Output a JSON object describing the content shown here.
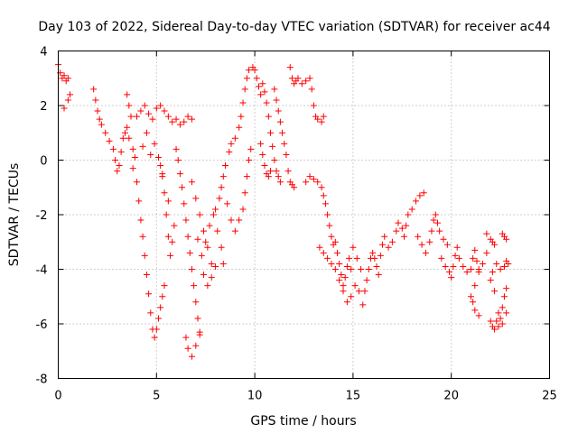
{
  "chart_data": {
    "type": "scatter",
    "title": "Day 103 of 2022, Sidereal Day-to-day VTEC variation (SDTVAR) for receiver ac44",
    "xlabel": "GPS time / hours",
    "ylabel": "SDTVAR / TECUs",
    "xlim": [
      0,
      25
    ],
    "ylim": [
      -8,
      4
    ],
    "xticks": [
      0,
      5,
      10,
      15,
      20,
      25
    ],
    "yticks": [
      -8,
      -6,
      -4,
      -2,
      0,
      2,
      4
    ],
    "xtick_labels": [
      "0",
      "5",
      "10",
      "15",
      "20",
      "25"
    ],
    "ytick_labels": [
      "-8",
      "-6",
      "-4",
      "-2",
      "0",
      "2",
      "4"
    ],
    "grid": true,
    "marker": "+",
    "color": "#ff0000",
    "series": [
      {
        "name": "SDTVAR",
        "points": [
          [
            0.0,
            3.5
          ],
          [
            0.1,
            3.2
          ],
          [
            0.2,
            3.0
          ],
          [
            0.3,
            3.1
          ],
          [
            0.4,
            2.9
          ],
          [
            0.5,
            3.0
          ],
          [
            0.3,
            1.9
          ],
          [
            0.5,
            2.2
          ],
          [
            0.6,
            2.4
          ],
          [
            1.8,
            2.6
          ],
          [
            1.9,
            2.2
          ],
          [
            2.0,
            1.8
          ],
          [
            2.1,
            1.5
          ],
          [
            2.2,
            1.3
          ],
          [
            2.4,
            1.0
          ],
          [
            2.6,
            0.7
          ],
          [
            2.8,
            0.4
          ],
          [
            2.9,
            0.0
          ],
          [
            3.0,
            -0.4
          ],
          [
            3.1,
            -0.2
          ],
          [
            3.2,
            0.3
          ],
          [
            3.3,
            0.8
          ],
          [
            3.4,
            1.0
          ],
          [
            3.5,
            2.4
          ],
          [
            3.6,
            2.0
          ],
          [
            3.7,
            1.6
          ],
          [
            3.5,
            1.2
          ],
          [
            3.6,
            0.8
          ],
          [
            3.8,
            0.4
          ],
          [
            3.9,
            0.1
          ],
          [
            3.8,
            -0.3
          ],
          [
            4.0,
            -0.8
          ],
          [
            4.1,
            -1.5
          ],
          [
            4.2,
            -2.2
          ],
          [
            4.3,
            -2.8
          ],
          [
            4.4,
            -3.5
          ],
          [
            4.5,
            -4.2
          ],
          [
            4.6,
            -4.9
          ],
          [
            4.7,
            -5.6
          ],
          [
            4.8,
            -6.2
          ],
          [
            4.9,
            -6.5
          ],
          [
            5.0,
            -6.2
          ],
          [
            5.1,
            -5.8
          ],
          [
            5.2,
            -5.4
          ],
          [
            5.3,
            -5.0
          ],
          [
            5.4,
            -4.6
          ],
          [
            4.0,
            1.6
          ],
          [
            4.2,
            1.8
          ],
          [
            4.4,
            2.0
          ],
          [
            4.6,
            1.7
          ],
          [
            4.8,
            1.5
          ],
          [
            5.0,
            1.9
          ],
          [
            5.2,
            2.0
          ],
          [
            5.4,
            1.8
          ],
          [
            5.6,
            1.6
          ],
          [
            5.8,
            1.4
          ],
          [
            6.0,
            1.5
          ],
          [
            6.2,
            1.3
          ],
          [
            6.4,
            1.4
          ],
          [
            6.6,
            1.6
          ],
          [
            6.8,
            1.5
          ],
          [
            4.3,
            0.5
          ],
          [
            4.5,
            1.0
          ],
          [
            4.7,
            0.2
          ],
          [
            4.9,
            0.6
          ],
          [
            5.1,
            0.1
          ],
          [
            5.3,
            -0.5
          ],
          [
            5.4,
            -1.2
          ],
          [
            5.5,
            -2.0
          ],
          [
            5.6,
            -2.8
          ],
          [
            5.7,
            -3.5
          ],
          [
            5.8,
            -3.0
          ],
          [
            5.9,
            -2.4
          ],
          [
            5.6,
            -1.5
          ],
          [
            5.3,
            -0.6
          ],
          [
            5.2,
            -0.2
          ],
          [
            6.0,
            0.4
          ],
          [
            6.1,
            0.0
          ],
          [
            6.2,
            -0.5
          ],
          [
            6.3,
            -1.0
          ],
          [
            6.4,
            -1.6
          ],
          [
            6.5,
            -2.2
          ],
          [
            6.6,
            -2.8
          ],
          [
            6.7,
            -3.4
          ],
          [
            6.8,
            -4.0
          ],
          [
            6.9,
            -4.6
          ],
          [
            7.0,
            -5.2
          ],
          [
            7.1,
            -5.8
          ],
          [
            7.2,
            -6.3
          ],
          [
            6.5,
            -6.5
          ],
          [
            6.6,
            -6.9
          ],
          [
            6.8,
            -7.2
          ],
          [
            7.0,
            -6.8
          ],
          [
            7.2,
            -6.4
          ],
          [
            6.8,
            -0.8
          ],
          [
            7.0,
            -1.4
          ],
          [
            7.2,
            -2.0
          ],
          [
            7.4,
            -2.6
          ],
          [
            7.6,
            -3.2
          ],
          [
            7.8,
            -3.8
          ],
          [
            7.4,
            -4.2
          ],
          [
            7.6,
            -4.6
          ],
          [
            7.8,
            -4.3
          ],
          [
            8.0,
            -3.9
          ],
          [
            7.5,
            -3.0
          ],
          [
            7.3,
            -3.5
          ],
          [
            7.1,
            -2.9
          ],
          [
            7.7,
            -2.4
          ],
          [
            7.9,
            -2.0
          ],
          [
            8.1,
            -2.6
          ],
          [
            8.3,
            -3.2
          ],
          [
            8.4,
            -3.8
          ],
          [
            8.0,
            -1.8
          ],
          [
            8.2,
            -1.4
          ],
          [
            8.3,
            -1.0
          ],
          [
            8.4,
            -0.6
          ],
          [
            8.5,
            -0.2
          ],
          [
            8.7,
            0.3
          ],
          [
            8.8,
            0.6
          ],
          [
            8.6,
            -1.6
          ],
          [
            8.8,
            -2.2
          ],
          [
            9.0,
            -2.6
          ],
          [
            9.2,
            -2.2
          ],
          [
            9.4,
            -1.8
          ],
          [
            9.5,
            -1.2
          ],
          [
            9.6,
            -0.6
          ],
          [
            9.7,
            0.0
          ],
          [
            9.8,
            0.4
          ],
          [
            9.0,
            0.8
          ],
          [
            9.2,
            1.2
          ],
          [
            9.3,
            1.6
          ],
          [
            9.4,
            2.1
          ],
          [
            9.5,
            2.6
          ],
          [
            9.6,
            3.0
          ],
          [
            9.7,
            3.3
          ],
          [
            9.9,
            3.4
          ],
          [
            10.0,
            3.3
          ],
          [
            10.1,
            3.0
          ],
          [
            10.2,
            2.7
          ],
          [
            10.3,
            2.4
          ],
          [
            10.4,
            2.8
          ],
          [
            10.5,
            2.5
          ],
          [
            10.6,
            2.1
          ],
          [
            10.7,
            1.6
          ],
          [
            10.8,
            1.0
          ],
          [
            10.9,
            0.5
          ],
          [
            11.0,
            0.0
          ],
          [
            11.1,
            -0.4
          ],
          [
            11.2,
            -0.6
          ],
          [
            11.3,
            -0.8
          ],
          [
            10.3,
            0.6
          ],
          [
            10.4,
            0.2
          ],
          [
            10.5,
            -0.2
          ],
          [
            10.6,
            -0.5
          ],
          [
            10.7,
            -0.6
          ],
          [
            10.8,
            -0.4
          ],
          [
            11.0,
            2.6
          ],
          [
            11.1,
            2.2
          ],
          [
            11.2,
            1.8
          ],
          [
            11.3,
            1.4
          ],
          [
            11.4,
            1.0
          ],
          [
            11.5,
            0.6
          ],
          [
            11.6,
            0.2
          ],
          [
            11.7,
            -0.4
          ],
          [
            11.8,
            -0.8
          ],
          [
            11.9,
            -0.9
          ],
          [
            12.0,
            -1.0
          ],
          [
            11.8,
            3.4
          ],
          [
            11.9,
            3.0
          ],
          [
            12.0,
            2.8
          ],
          [
            12.1,
            2.9
          ],
          [
            12.2,
            3.0
          ],
          [
            12.4,
            2.8
          ],
          [
            12.6,
            2.9
          ],
          [
            12.8,
            3.0
          ],
          [
            12.9,
            2.6
          ],
          [
            13.0,
            2.0
          ],
          [
            13.1,
            1.6
          ],
          [
            13.2,
            1.5
          ],
          [
            13.4,
            1.4
          ],
          [
            13.5,
            1.6
          ],
          [
            12.6,
            -0.8
          ],
          [
            12.8,
            -0.6
          ],
          [
            13.0,
            -0.7
          ],
          [
            13.2,
            -0.8
          ],
          [
            13.4,
            -1.0
          ],
          [
            13.5,
            -1.3
          ],
          [
            13.6,
            -1.6
          ],
          [
            13.7,
            -2.0
          ],
          [
            13.8,
            -2.4
          ],
          [
            13.9,
            -2.8
          ],
          [
            14.0,
            -3.1
          ],
          [
            14.1,
            -3.0
          ],
          [
            14.2,
            -3.4
          ],
          [
            14.3,
            -3.8
          ],
          [
            14.4,
            -4.2
          ],
          [
            14.5,
            -4.6
          ],
          [
            14.6,
            -4.3
          ],
          [
            14.7,
            -3.9
          ],
          [
            14.8,
            -3.6
          ],
          [
            14.9,
            -4.0
          ],
          [
            13.3,
            -3.2
          ],
          [
            13.5,
            -3.4
          ],
          [
            13.7,
            -3.6
          ],
          [
            13.9,
            -3.8
          ],
          [
            14.1,
            -4.0
          ],
          [
            14.3,
            -4.4
          ],
          [
            14.5,
            -4.8
          ],
          [
            14.7,
            -5.2
          ],
          [
            14.9,
            -5.0
          ],
          [
            15.1,
            -4.6
          ],
          [
            15.3,
            -4.8
          ],
          [
            15.5,
            -5.3
          ],
          [
            15.6,
            -4.8
          ],
          [
            15.7,
            -4.4
          ],
          [
            15.8,
            -4.0
          ],
          [
            15.9,
            -3.6
          ],
          [
            16.0,
            -3.4
          ],
          [
            16.1,
            -3.6
          ],
          [
            16.2,
            -3.9
          ],
          [
            16.3,
            -4.2
          ],
          [
            15.0,
            -3.2
          ],
          [
            15.2,
            -3.6
          ],
          [
            15.4,
            -4.0
          ],
          [
            16.4,
            -3.5
          ],
          [
            16.5,
            -3.1
          ],
          [
            16.6,
            -2.8
          ],
          [
            16.8,
            -3.2
          ],
          [
            17.0,
            -3.0
          ],
          [
            17.2,
            -2.6
          ],
          [
            17.3,
            -2.3
          ],
          [
            17.5,
            -2.5
          ],
          [
            17.6,
            -2.8
          ],
          [
            17.7,
            -2.4
          ],
          [
            17.8,
            -2.0
          ],
          [
            18.0,
            -1.8
          ],
          [
            18.2,
            -1.5
          ],
          [
            18.4,
            -1.3
          ],
          [
            18.6,
            -1.2
          ],
          [
            18.3,
            -2.8
          ],
          [
            18.5,
            -3.1
          ],
          [
            18.7,
            -3.4
          ],
          [
            18.9,
            -3.0
          ],
          [
            19.0,
            -2.6
          ],
          [
            19.1,
            -2.2
          ],
          [
            19.2,
            -2.0
          ],
          [
            19.3,
            -2.3
          ],
          [
            19.4,
            -2.6
          ],
          [
            19.6,
            -2.9
          ],
          [
            19.8,
            -3.1
          ],
          [
            19.5,
            -3.6
          ],
          [
            19.7,
            -3.9
          ],
          [
            19.9,
            -4.1
          ],
          [
            20.0,
            -4.3
          ],
          [
            20.1,
            -3.9
          ],
          [
            20.2,
            -3.5
          ],
          [
            20.3,
            -3.2
          ],
          [
            20.4,
            -3.6
          ],
          [
            20.6,
            -3.9
          ],
          [
            20.8,
            -4.1
          ],
          [
            21.0,
            -4.0
          ],
          [
            21.1,
            -3.6
          ],
          [
            21.2,
            -3.3
          ],
          [
            21.3,
            -3.7
          ],
          [
            21.4,
            -4.0
          ],
          [
            21.0,
            -5.0
          ],
          [
            21.1,
            -5.2
          ],
          [
            21.2,
            -4.6
          ],
          [
            21.4,
            -4.1
          ],
          [
            21.6,
            -3.8
          ],
          [
            21.8,
            -3.4
          ],
          [
            21.2,
            -5.5
          ],
          [
            21.4,
            -5.7
          ],
          [
            21.8,
            -2.7
          ],
          [
            22.0,
            -2.9
          ],
          [
            22.1,
            -3.0
          ],
          [
            22.2,
            -3.1
          ],
          [
            22.0,
            -5.9
          ],
          [
            22.1,
            -6.1
          ],
          [
            22.2,
            -6.2
          ],
          [
            22.3,
            -5.9
          ],
          [
            22.4,
            -5.6
          ],
          [
            22.5,
            -5.8
          ],
          [
            22.6,
            -5.4
          ],
          [
            22.7,
            -5.0
          ],
          [
            22.8,
            -4.7
          ],
          [
            22.4,
            -6.1
          ],
          [
            22.6,
            -6.0
          ],
          [
            22.8,
            -5.6
          ],
          [
            22.2,
            -4.8
          ],
          [
            22.0,
            -4.4
          ],
          [
            22.1,
            -4.1
          ],
          [
            22.3,
            -3.8
          ],
          [
            22.5,
            -4.0
          ],
          [
            22.7,
            -3.9
          ],
          [
            22.8,
            -3.7
          ],
          [
            22.9,
            -3.8
          ],
          [
            22.6,
            -2.7
          ],
          [
            22.7,
            -2.8
          ],
          [
            22.8,
            -2.9
          ]
        ]
      }
    ]
  }
}
